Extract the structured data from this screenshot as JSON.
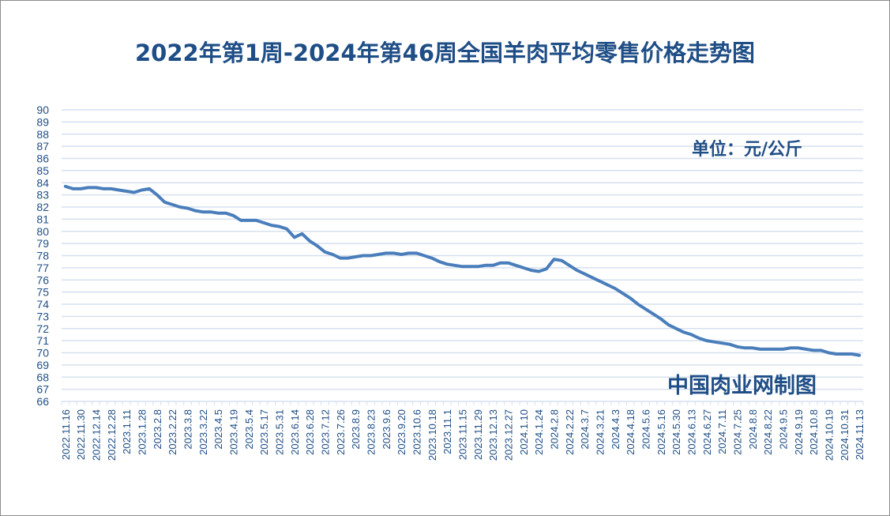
{
  "chart_data": {
    "type": "line",
    "title": "2022年第1周-2024年第46周全国羊肉平均零售价格走势图",
    "xlabel": "",
    "ylabel": "",
    "unit_label": "单位：元/公斤",
    "source_label": "中国肉业网制图",
    "ylim": [
      66,
      90
    ],
    "yticks": [
      66,
      67,
      68,
      69,
      70,
      71,
      72,
      73,
      74,
      75,
      76,
      77,
      78,
      79,
      80,
      81,
      82,
      83,
      84,
      85,
      86,
      87,
      88,
      89,
      90
    ],
    "grid": true,
    "legend": "none",
    "line_color": "#4a7ebb",
    "text_color": "#1f4e86",
    "grid_color": "#d6e0ef",
    "categories": [
      "2022.11.16",
      "2022.11.30",
      "2022.12.14",
      "2022.12.28",
      "2023.1.11",
      "2023.1.28",
      "2023.2.8",
      "2023.2.22",
      "2023.3.8",
      "2023.3.22",
      "2023.4.5",
      "2023.4.19",
      "2023.5.4",
      "2023.5.17",
      "2023.5.31",
      "2023.6.14",
      "2023.6.28",
      "2023.7.12",
      "2023.7.26",
      "2023.8.9",
      "2023.8.23",
      "2023.9.6",
      "2023.9.20",
      "2023.10.6",
      "2023.10.18",
      "2023.11.1",
      "2023.11.15",
      "2023.11.29",
      "2023.12.13",
      "2023.12.27",
      "2024.1.10",
      "2024.1.24",
      "2024.2.8",
      "2024.2.22",
      "2024.3.7",
      "2024.3.21",
      "2024.4.3",
      "2024.4.18",
      "2024.5.6",
      "2024.5.16",
      "2024.5.30",
      "2024.6.13",
      "2024.6.27",
      "2024.7.11",
      "2024.7.25",
      "2024.8.8",
      "2024.8.22",
      "2024.9.5",
      "2024.9.19",
      "2024.10.8",
      "2024.10.19",
      "2024.10.31",
      "2024.11.13"
    ],
    "series": [
      {
        "name": "全国羊肉平均零售价格",
        "values": [
          83.7,
          83.5,
          83.5,
          83.6,
          83.6,
          83.5,
          83.5,
          83.4,
          83.3,
          83.2,
          83.4,
          83.5,
          83.0,
          82.4,
          82.2,
          82.0,
          81.9,
          81.7,
          81.6,
          81.6,
          81.5,
          81.5,
          81.3,
          80.9,
          80.9,
          80.9,
          80.7,
          80.5,
          80.4,
          80.2,
          79.5,
          79.8,
          79.2,
          78.8,
          78.3,
          78.1,
          77.8,
          77.8,
          77.9,
          78.0,
          78.0,
          78.1,
          78.2,
          78.2,
          78.1,
          78.2,
          78.2,
          78.0,
          77.8,
          77.5,
          77.3,
          77.2,
          77.1,
          77.1,
          77.1,
          77.2,
          77.2,
          77.4,
          77.4,
          77.2,
          77.0,
          76.8,
          76.7,
          76.9,
          77.7,
          77.6,
          77.2,
          76.8,
          76.5,
          76.2,
          75.9,
          75.6,
          75.3,
          74.9,
          74.5,
          74.0,
          73.6,
          73.2,
          72.8,
          72.3,
          72.0,
          71.7,
          71.5,
          71.2,
          71.0,
          70.9,
          70.8,
          70.7,
          70.5,
          70.4,
          70.4,
          70.3,
          70.3,
          70.3,
          70.3,
          70.4,
          70.4,
          70.3,
          70.2,
          70.2,
          70.0,
          69.9,
          69.9,
          69.9,
          69.8
        ]
      }
    ]
  }
}
